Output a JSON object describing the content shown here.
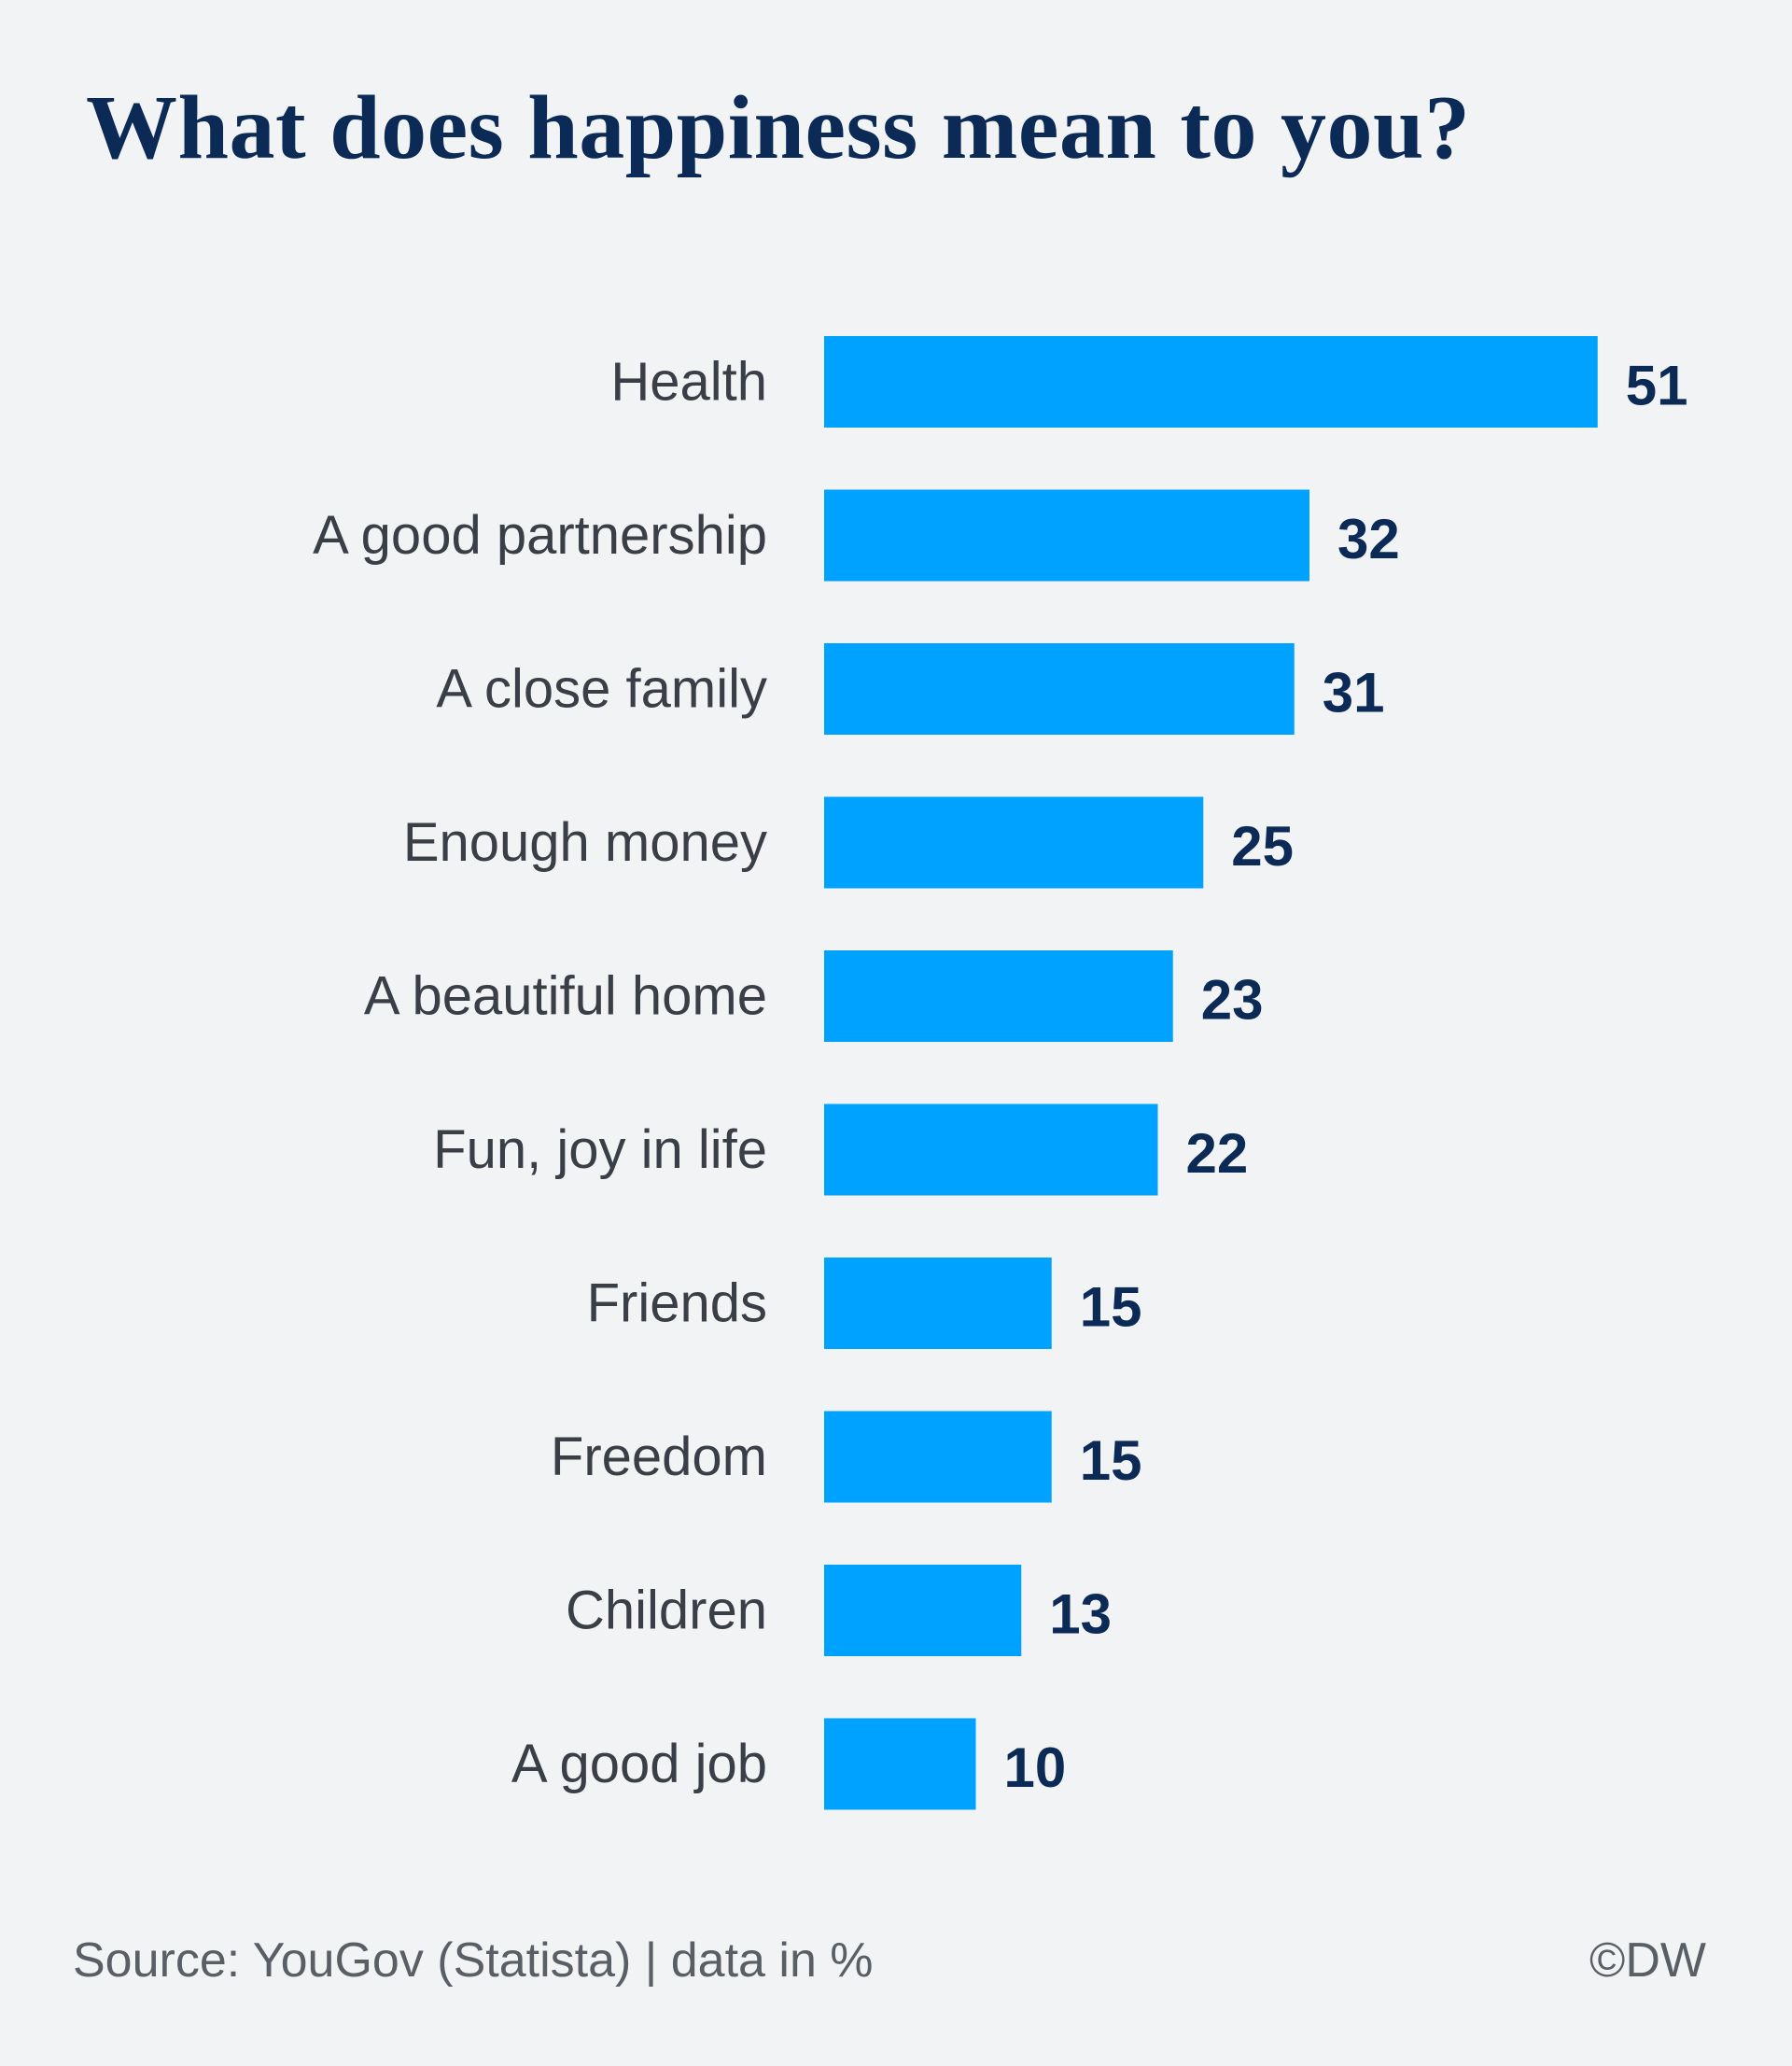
{
  "chart_data": {
    "type": "bar",
    "orientation": "horizontal",
    "title": "What does happiness mean to you?",
    "categories": [
      "Health",
      "A good partnership",
      "A close family",
      "Enough money",
      "A beautiful home",
      "Fun, joy in life",
      "Friends",
      "Freedom",
      "Children",
      "A good job"
    ],
    "values": [
      51,
      32,
      31,
      25,
      23,
      22,
      15,
      15,
      13,
      10
    ],
    "xlabel": "",
    "ylabel": "",
    "unit": "%",
    "grid": false,
    "legend": "none",
    "bar_color": "#00a2ff"
  },
  "footer": {
    "source": "Source: YouGov (Statista) | data in %",
    "credit": "©DW"
  },
  "colors": {
    "background": "#f2f3f5",
    "title": "#0c2a56",
    "bar": "#00a2ff",
    "value_text": "#0c2a56",
    "label_text": "#3a3f47"
  }
}
